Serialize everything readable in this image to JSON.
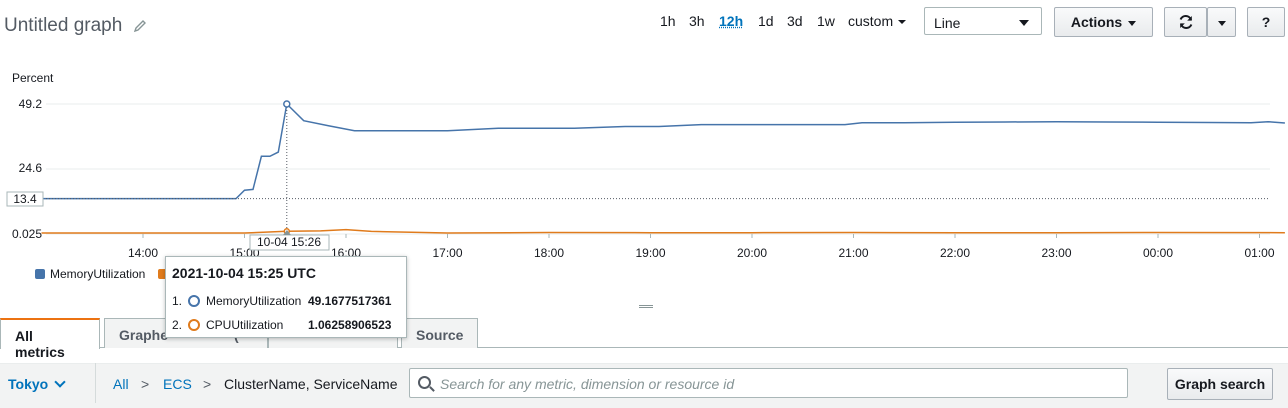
{
  "header": {
    "title": "Untitled graph",
    "ranges": [
      "1h",
      "3h",
      "12h",
      "1d",
      "3d",
      "1w"
    ],
    "active_range": "12h",
    "custom_label": "custom",
    "chart_type": "Line",
    "actions_label": "Actions",
    "help_label": "?"
  },
  "chart_data": {
    "type": "line",
    "ylabel": "Percent",
    "yticks": [
      "49.2",
      "24.6",
      "0.025"
    ],
    "ylim": [
      0.025,
      49.2
    ],
    "xticks": [
      "14:00",
      "15:00",
      "16:00",
      "17:00",
      "18:00",
      "19:00",
      "20:00",
      "21:00",
      "22:00",
      "23:00",
      "00:00",
      "01:00"
    ],
    "hover_x_label": "10-04 15:26",
    "hover_y_label": "13.4",
    "series": [
      {
        "name": "MemoryUtilization",
        "color": "#4674aa",
        "x": [
          "13:00",
          "14:00",
          "14:30",
          "14:55",
          "15:00",
          "15:05",
          "15:10",
          "15:15",
          "15:20",
          "15:25",
          "15:35",
          "15:50",
          "16:05",
          "16:20",
          "16:35",
          "17:00",
          "17:30",
          "17:55",
          "18:15",
          "18:45",
          "19:05",
          "19:30",
          "20:00",
          "20:30",
          "20:55",
          "21:05",
          "21:30",
          "22:00",
          "22:30",
          "23:00",
          "23:30",
          "00:00",
          "00:30",
          "00:55",
          "01:05",
          "01:15"
        ],
        "values": [
          13.4,
          13.4,
          13.4,
          13.4,
          16.6,
          16.9,
          29.4,
          29.4,
          31.0,
          49.2,
          42.9,
          40.9,
          39.1,
          39.1,
          39.1,
          39.1,
          40.0,
          40.0,
          40.0,
          40.7,
          40.7,
          41.4,
          41.4,
          41.4,
          41.4,
          42.1,
          42.1,
          42.3,
          42.4,
          42.5,
          42.4,
          42.3,
          42.2,
          42.1,
          42.5,
          42.0
        ]
      },
      {
        "name": "CPUUtilization",
        "color": "#e07b1c",
        "x": [
          "13:00",
          "14:00",
          "15:00",
          "15:25",
          "15:45",
          "16:00",
          "16:15",
          "17:00",
          "18:00",
          "19:00",
          "20:00",
          "21:00",
          "22:00",
          "23:00",
          "00:00",
          "01:15"
        ],
        "values": [
          0.4,
          0.4,
          0.4,
          1.06,
          1.2,
          1.7,
          1.0,
          0.4,
          0.6,
          0.5,
          0.5,
          0.6,
          0.5,
          0.5,
          0.6,
          0.5
        ]
      }
    ],
    "tooltip": {
      "title": "2021-10-04 15:25 UTC",
      "rows": [
        {
          "index": "1.",
          "name": "MemoryUtilization",
          "value": "49.1677517361",
          "color": "#4674aa"
        },
        {
          "index": "2.",
          "name": "CPUUtilization",
          "value": "1.06258906523",
          "color": "#e07b1c"
        }
      ]
    }
  },
  "tabs": {
    "all_metrics": "All metrics",
    "graphed_prefix": "Graphe",
    "graphed_suffix": "(",
    "source": "Source"
  },
  "bottom": {
    "region": "Tokyo",
    "crumbs": [
      "All",
      "ECS",
      "ClusterName, ServiceName"
    ],
    "crumb_sep": ">",
    "search_placeholder": "Search for any metric, dimension or resource id",
    "graph_search_label": "Graph search"
  }
}
